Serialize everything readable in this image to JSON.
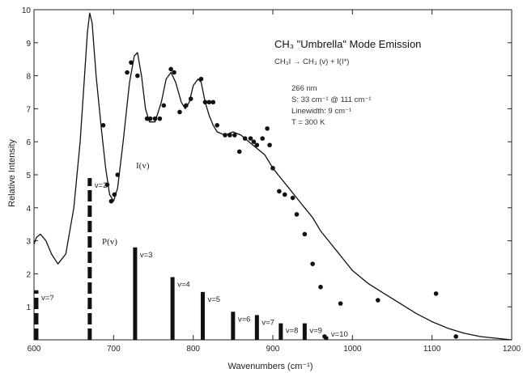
{
  "chart_data": {
    "type": "line",
    "title": "CH₃ \"Umbrella\" Mode Emission",
    "reaction": "CH₃I → CH₃ (v) + I(I*)",
    "notes": [
      "266 nm",
      "S: 33 cm⁻¹ @ 111 cm⁻¹",
      "Linewidth: 9 cm⁻¹",
      "T = 300 K"
    ],
    "xlabel": "Wavenumbers (cm⁻¹)",
    "ylabel": "Relative Intensity",
    "xlim": [
      600,
      1200
    ],
    "ylim": [
      0,
      10
    ],
    "x_ticks": [
      600,
      700,
      800,
      900,
      1000,
      1100,
      1200
    ],
    "x_tick_labels": [
      "600",
      "700",
      "800",
      "900",
      "1000",
      "1100",
      "1200"
    ],
    "y_ticks": [
      1,
      2,
      3,
      4,
      5,
      6,
      7,
      8,
      9,
      10
    ],
    "y_tick_labels": [
      "1",
      "2",
      "3",
      "4",
      "5",
      "6",
      "7",
      "8",
      "9",
      "10"
    ],
    "series": [
      {
        "name": "I(v)",
        "kind": "fit-curve",
        "x": [
          600,
          603,
          608,
          615,
          622,
          630,
          640,
          650,
          658,
          663,
          667,
          670,
          673,
          678,
          685,
          690,
          695,
          700,
          705,
          712,
          720,
          726,
          730,
          735,
          740,
          745,
          752,
          760,
          766,
          772,
          778,
          785,
          790,
          795,
          800,
          806,
          810,
          815,
          820,
          825,
          830,
          840,
          850,
          860,
          870,
          880,
          890,
          900,
          910,
          920,
          930,
          940,
          950,
          960,
          970,
          980,
          990,
          1000,
          1020,
          1040,
          1060,
          1080,
          1100,
          1120,
          1140,
          1160,
          1180,
          1200
        ],
        "y": [
          2.9,
          3.1,
          3.2,
          3.0,
          2.6,
          2.3,
          2.6,
          4.0,
          6.0,
          7.8,
          9.3,
          9.9,
          9.6,
          8.0,
          6.3,
          5.2,
          4.4,
          4.2,
          4.6,
          6.0,
          7.8,
          8.6,
          8.7,
          8.0,
          7.0,
          6.6,
          6.6,
          7.2,
          7.9,
          8.1,
          7.8,
          7.2,
          7.0,
          7.2,
          7.7,
          7.9,
          7.8,
          7.2,
          6.8,
          6.5,
          6.3,
          6.2,
          6.3,
          6.2,
          6.0,
          5.8,
          5.6,
          5.2,
          4.9,
          4.6,
          4.3,
          4.0,
          3.7,
          3.3,
          3.0,
          2.7,
          2.4,
          2.1,
          1.7,
          1.4,
          1.1,
          0.8,
          0.55,
          0.35,
          0.2,
          0.1,
          0.05,
          0.0
        ]
      },
      {
        "name": "experimental",
        "kind": "points",
        "x": [
          687,
          692,
          697,
          701,
          705,
          717,
          722,
          730,
          742,
          746,
          752,
          758,
          763,
          772,
          776,
          783,
          791,
          797,
          810,
          815,
          820,
          825,
          830,
          840,
          846,
          852,
          858,
          865,
          872,
          876,
          880,
          887,
          893,
          896,
          900,
          908,
          915,
          925,
          930,
          940,
          950,
          960,
          965,
          985,
          1032,
          1105,
          1130
        ],
        "y": [
          6.5,
          4.7,
          4.2,
          4.4,
          5.0,
          8.1,
          8.4,
          8.0,
          6.7,
          6.7,
          6.7,
          6.7,
          7.1,
          8.2,
          8.1,
          6.9,
          7.1,
          7.3,
          7.9,
          7.2,
          7.2,
          7.2,
          6.5,
          6.2,
          6.2,
          6.2,
          5.7,
          6.1,
          6.1,
          6.0,
          5.9,
          6.1,
          6.4,
          5.9,
          5.2,
          4.5,
          4.4,
          4.3,
          3.8,
          3.2,
          2.3,
          1.6,
          0.1,
          1.1,
          1.2,
          1.4,
          0.1
        ]
      }
    ],
    "sticks": {
      "name": "P(v)",
      "labels": [
        "v=?",
        "v=2",
        "v=3",
        "v=4",
        "v=5",
        "v=6",
        "v=7",
        "v=8",
        "v=9",
        "v=10"
      ],
      "x": [
        603,
        670,
        727,
        774,
        812,
        850,
        880,
        910,
        940,
        967
      ],
      "y": [
        1.5,
        4.9,
        2.8,
        1.9,
        1.45,
        0.85,
        0.75,
        0.5,
        0.5,
        0.1
      ]
    },
    "grid": false
  }
}
